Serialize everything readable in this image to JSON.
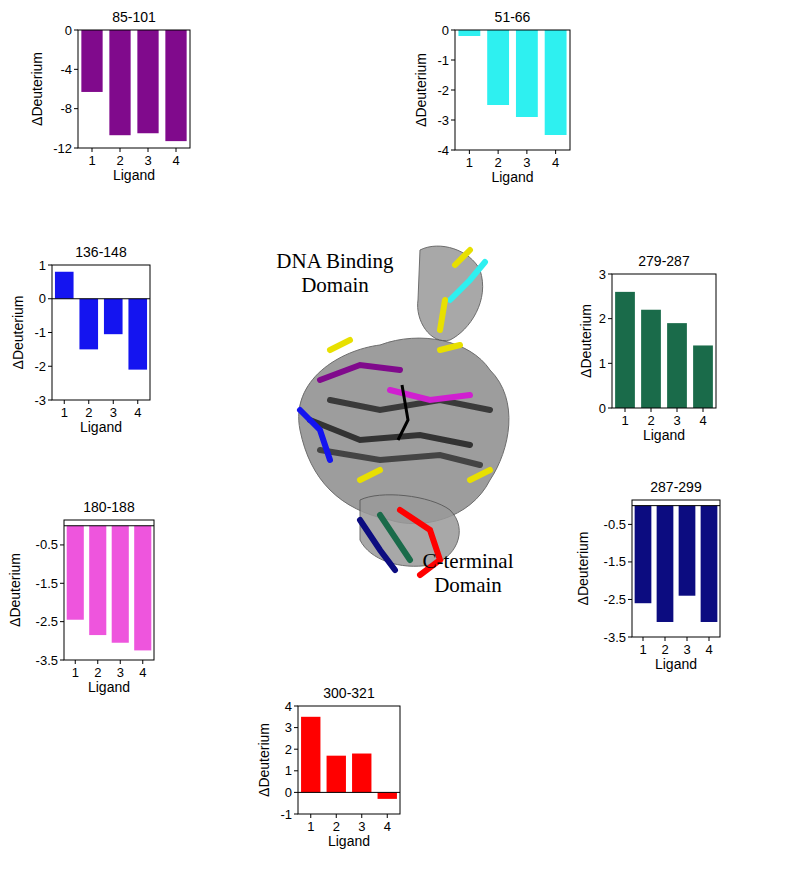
{
  "chart_data": [
    {
      "type": "bar",
      "title": "85-101",
      "x_label": "Ligand",
      "y_label": "ΔDeuterium",
      "categories": [
        "1",
        "2",
        "3",
        "4"
      ],
      "values": [
        -6.3,
        -10.7,
        -10.5,
        -11.3
      ],
      "color": "#800a8c",
      "ylim": [
        -12,
        0
      ],
      "yticks": [
        -12,
        -8,
        -4,
        0
      ]
    },
    {
      "type": "bar",
      "title": "51-66",
      "x_label": "Ligand",
      "y_label": "ΔDeuterium",
      "categories": [
        "1",
        "2",
        "3",
        "4"
      ],
      "values": [
        -0.2,
        -2.5,
        -2.9,
        -3.5
      ],
      "color": "#2ef0f0",
      "ylim": [
        -4,
        0
      ],
      "yticks": [
        -4,
        -3,
        -2,
        -1,
        0
      ]
    },
    {
      "type": "bar",
      "title": "136-148",
      "x_label": "Ligand",
      "y_label": "ΔDeuterium",
      "categories": [
        "1",
        "2",
        "3",
        "4"
      ],
      "values": [
        0.8,
        -1.5,
        -1.05,
        -2.1
      ],
      "color": "#1414f0",
      "ylim": [
        -3,
        1
      ],
      "yticks": [
        -3,
        -2,
        -1,
        0,
        1
      ]
    },
    {
      "type": "bar",
      "title": "279-287",
      "x_label": "Ligand",
      "y_label": "ΔDeuterium",
      "categories": [
        "1",
        "2",
        "3",
        "4"
      ],
      "values": [
        2.6,
        2.2,
        1.9,
        1.4
      ],
      "color": "#1a6b4a",
      "ylim": [
        0,
        3
      ],
      "yticks": [
        0,
        1,
        2,
        3
      ]
    },
    {
      "type": "bar",
      "title": "180-188",
      "x_label": "Ligand",
      "y_label": "ΔDeuterium",
      "categories": [
        "1",
        "2",
        "3",
        "4"
      ],
      "values": [
        -2.45,
        -2.85,
        -3.05,
        -3.25
      ],
      "color": "#ee55dd",
      "ylim": [
        -3.5,
        0.15
      ],
      "yticks": [
        -3.5,
        -2.5,
        -1.5,
        -0.5
      ]
    },
    {
      "type": "bar",
      "title": "287-299",
      "x_label": "Ligand",
      "y_label": "ΔDeuterium",
      "categories": [
        "1",
        "2",
        "3",
        "4"
      ],
      "values": [
        -2.6,
        -3.1,
        -2.4,
        -3.1
      ],
      "color": "#0c0c80",
      "ylim": [
        -3.5,
        0.15
      ],
      "yticks": [
        -3.5,
        -2.5,
        -1.5,
        -0.5
      ]
    },
    {
      "type": "bar",
      "title": "300-321",
      "x_label": "Ligand",
      "y_label": "ΔDeuterium",
      "categories": [
        "1",
        "2",
        "3",
        "4"
      ],
      "values": [
        3.5,
        1.7,
        1.8,
        -0.3
      ],
      "color": "#ff0000",
      "ylim": [
        -1,
        4
      ],
      "yticks": [
        -1,
        0,
        1,
        2,
        3,
        4
      ]
    }
  ],
  "structure": {
    "labels": [
      [
        "DNA Binding",
        "Domain"
      ],
      [
        "C-terminal",
        "Domain"
      ]
    ]
  }
}
